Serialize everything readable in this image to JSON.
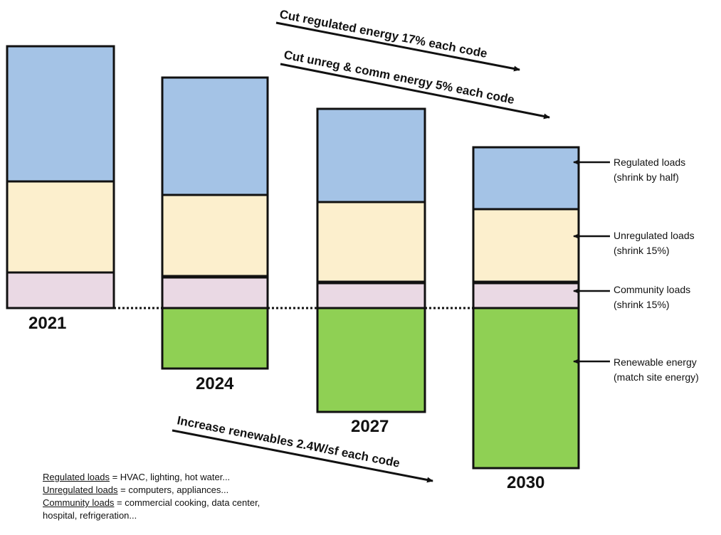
{
  "colors": {
    "regulated": "#a4c3e6",
    "unregulated": "#fcefcd",
    "community": "#ead9e4",
    "renewable": "#8fd054",
    "outline": "#111111"
  },
  "years": [
    {
      "label": "2021"
    },
    {
      "label": "2024"
    },
    {
      "label": "2027"
    },
    {
      "label": "2030"
    }
  ],
  "arrows": {
    "regulated_cut": "Cut regulated energy 17% each code",
    "unreg_cut": "Cut unreg & comm energy 5% each code",
    "renewables": "Increase renewables 2.4W/sf each code"
  },
  "callouts": [
    {
      "line1": "Regulated loads",
      "line2": "(shrink by half)"
    },
    {
      "line1": "Unregulated loads",
      "line2": "(shrink 15%)"
    },
    {
      "line1": "Community loads",
      "line2": "(shrink 15%)"
    },
    {
      "line1": "Renewable energy",
      "line2": "(match site energy)"
    }
  ],
  "legend": [
    {
      "term": "Regulated loads",
      "def": " = HVAC, lighting, hot water..."
    },
    {
      "term": "Unregulated loads",
      "def": " = computers, appliances..."
    },
    {
      "term": "Community loads",
      "def": " = commercial cooking, data center,"
    },
    {
      "term": "",
      "def": "hospital, refrigeration..."
    }
  ]
}
